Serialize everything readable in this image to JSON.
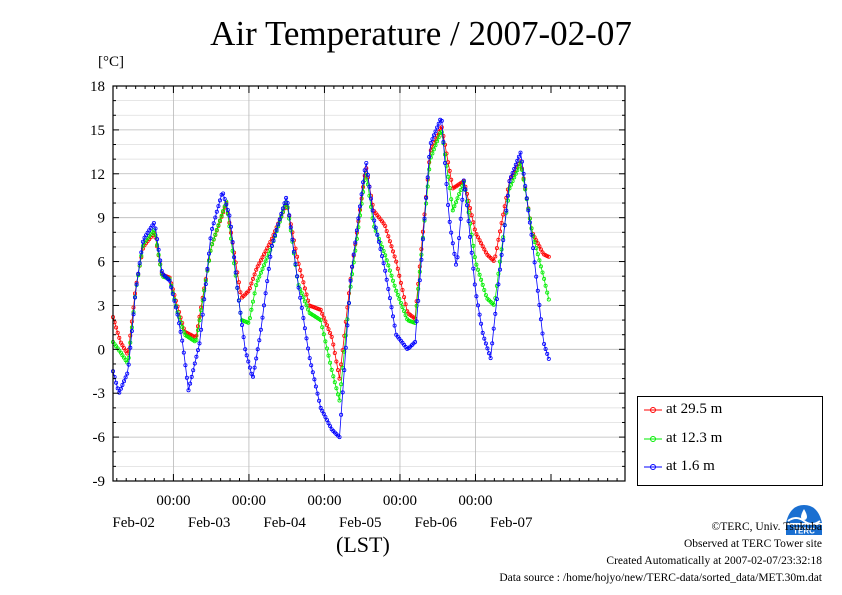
{
  "chart_data": {
    "type": "line",
    "title": "Air Temperature / 2007-02-07",
    "ylabel_unit": "[°C]",
    "xlabel": "(LST)",
    "ylim": [
      -9,
      18
    ],
    "yticks": [
      -9,
      -6,
      -3,
      0,
      3,
      6,
      9,
      12,
      15,
      18
    ],
    "x_unit": "days since Feb-01 00:00 (display range Feb-01 ~05:00 to Feb-07 ~24:00)",
    "xlim": [
      0.2,
      6.98
    ],
    "x_time_ticks": [
      {
        "x": 1,
        "label": "00:00"
      },
      {
        "x": 2,
        "label": "00:00"
      },
      {
        "x": 3,
        "label": "00:00"
      },
      {
        "x": 4,
        "label": "00:00"
      },
      {
        "x": 5,
        "label": "00:00"
      }
    ],
    "x_date_labels": [
      {
        "x": 0.5,
        "label": "Feb-02"
      },
      {
        "x": 1.5,
        "label": "Feb-03"
      },
      {
        "x": 2.5,
        "label": "Feb-04"
      },
      {
        "x": 3.5,
        "label": "Feb-05"
      },
      {
        "x": 4.5,
        "label": "Feb-06"
      },
      {
        "x": 5.5,
        "label": "Feb-07"
      }
    ],
    "grid": true,
    "legend_position": "bottom-right-outside",
    "series": [
      {
        "name": "at 29.5 m",
        "color": "#ff0000",
        "points": [
          [
            0.2,
            2.2
          ],
          [
            0.3,
            0.5
          ],
          [
            0.4,
            -0.4
          ],
          [
            0.5,
            4.2
          ],
          [
            0.6,
            7.0
          ],
          [
            0.75,
            8.0
          ],
          [
            0.85,
            5.1
          ],
          [
            0.95,
            4.9
          ],
          [
            1.05,
            3.0
          ],
          [
            1.15,
            1.2
          ],
          [
            1.3,
            0.8
          ],
          [
            1.5,
            7.0
          ],
          [
            1.7,
            10.0
          ],
          [
            1.9,
            3.5
          ],
          [
            2.0,
            4.0
          ],
          [
            2.1,
            5.5
          ],
          [
            2.3,
            7.5
          ],
          [
            2.5,
            10.0
          ],
          [
            2.65,
            6.0
          ],
          [
            2.8,
            3.0
          ],
          [
            2.95,
            2.7
          ],
          [
            3.1,
            0.8
          ],
          [
            3.2,
            -2.0
          ],
          [
            3.35,
            5.0
          ],
          [
            3.55,
            12.5
          ],
          [
            3.65,
            9.5
          ],
          [
            3.8,
            8.5
          ],
          [
            3.95,
            6.0
          ],
          [
            4.1,
            2.5
          ],
          [
            4.2,
            2.1
          ],
          [
            4.4,
            13.5
          ],
          [
            4.55,
            15.3
          ],
          [
            4.7,
            11.0
          ],
          [
            4.85,
            11.5
          ],
          [
            5.0,
            8.0
          ],
          [
            5.15,
            6.5
          ],
          [
            5.25,
            6.0
          ],
          [
            5.45,
            11.5
          ],
          [
            5.6,
            12.9
          ],
          [
            5.75,
            8.0
          ],
          [
            5.9,
            6.5
          ],
          [
            5.98,
            6.3
          ]
        ]
      },
      {
        "name": "at 12.3 m",
        "color": "#00ee00",
        "points": [
          [
            0.2,
            0.5
          ],
          [
            0.3,
            -0.2
          ],
          [
            0.4,
            -1.0
          ],
          [
            0.5,
            4.0
          ],
          [
            0.6,
            7.2
          ],
          [
            0.75,
            8.2
          ],
          [
            0.85,
            5.0
          ],
          [
            0.95,
            4.8
          ],
          [
            1.05,
            2.6
          ],
          [
            1.15,
            1.0
          ],
          [
            1.3,
            0.5
          ],
          [
            1.5,
            7.0
          ],
          [
            1.7,
            10.1
          ],
          [
            1.9,
            2.0
          ],
          [
            2.0,
            1.8
          ],
          [
            2.1,
            4.5
          ],
          [
            2.3,
            7.0
          ],
          [
            2.5,
            10.2
          ],
          [
            2.65,
            4.5
          ],
          [
            2.8,
            2.5
          ],
          [
            2.95,
            2.0
          ],
          [
            3.1,
            -1.5
          ],
          [
            3.2,
            -3.5
          ],
          [
            3.35,
            4.5
          ],
          [
            3.55,
            12.2
          ],
          [
            3.65,
            8.5
          ],
          [
            3.8,
            6.5
          ],
          [
            3.95,
            4.0
          ],
          [
            4.1,
            2.0
          ],
          [
            4.2,
            1.8
          ],
          [
            4.4,
            13.0
          ],
          [
            4.55,
            15.0
          ],
          [
            4.7,
            9.5
          ],
          [
            4.85,
            11.5
          ],
          [
            5.0,
            6.0
          ],
          [
            5.15,
            3.5
          ],
          [
            5.25,
            3.0
          ],
          [
            5.45,
            11.0
          ],
          [
            5.6,
            12.8
          ],
          [
            5.75,
            8.0
          ],
          [
            5.9,
            5.0
          ],
          [
            5.98,
            3.2
          ]
        ]
      },
      {
        "name": "at 1.6 m",
        "color": "#0000ff",
        "points": [
          [
            0.2,
            -1.5
          ],
          [
            0.28,
            -3.0
          ],
          [
            0.4,
            -1.5
          ],
          [
            0.5,
            4.0
          ],
          [
            0.6,
            7.5
          ],
          [
            0.75,
            8.7
          ],
          [
            0.85,
            5.2
          ],
          [
            0.95,
            4.7
          ],
          [
            1.05,
            2.5
          ],
          [
            1.12,
            0.5
          ],
          [
            1.2,
            -2.8
          ],
          [
            1.35,
            0.5
          ],
          [
            1.5,
            8.0
          ],
          [
            1.65,
            10.8
          ],
          [
            1.75,
            9.0
          ],
          [
            1.85,
            4.0
          ],
          [
            1.95,
            0.0
          ],
          [
            2.05,
            -2.0
          ],
          [
            2.15,
            1.0
          ],
          [
            2.3,
            7.0
          ],
          [
            2.5,
            10.5
          ],
          [
            2.65,
            4.5
          ],
          [
            2.8,
            -0.5
          ],
          [
            2.95,
            -4.0
          ],
          [
            3.1,
            -5.5
          ],
          [
            3.2,
            -6.0
          ],
          [
            3.35,
            5.0
          ],
          [
            3.55,
            12.9
          ],
          [
            3.65,
            9.0
          ],
          [
            3.8,
            5.5
          ],
          [
            3.95,
            1.0
          ],
          [
            4.1,
            0.0
          ],
          [
            4.2,
            0.5
          ],
          [
            4.4,
            14.0
          ],
          [
            4.55,
            15.9
          ],
          [
            4.65,
            9.0
          ],
          [
            4.75,
            5.5
          ],
          [
            4.85,
            11.8
          ],
          [
            5.0,
            4.0
          ],
          [
            5.1,
            1.0
          ],
          [
            5.2,
            -0.6
          ],
          [
            5.45,
            11.5
          ],
          [
            5.6,
            13.5
          ],
          [
            5.75,
            7.5
          ],
          [
            5.9,
            0.5
          ],
          [
            5.98,
            -0.8
          ]
        ]
      }
    ]
  },
  "footer": {
    "copyright": "©TERC, Univ. Tsukuba",
    "site": "Observed at TERC Tower site",
    "created": "Created Automatically at 2007-02-07/23:32:18",
    "source": "Data source : /home/hojyo/new/TERC-data/sorted_data/MET.30m.dat"
  },
  "logo_text": "TERC"
}
